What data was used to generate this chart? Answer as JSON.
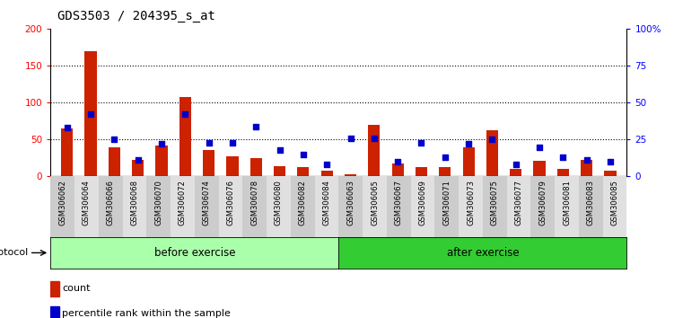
{
  "title": "GDS3503 / 204395_s_at",
  "categories": [
    "GSM306062",
    "GSM306064",
    "GSM306066",
    "GSM306068",
    "GSM306070",
    "GSM306072",
    "GSM306074",
    "GSM306076",
    "GSM306078",
    "GSM306080",
    "GSM306082",
    "GSM306084",
    "GSM306063",
    "GSM306065",
    "GSM306067",
    "GSM306069",
    "GSM306071",
    "GSM306073",
    "GSM306075",
    "GSM306077",
    "GSM306079",
    "GSM306081",
    "GSM306083",
    "GSM306085"
  ],
  "count_values": [
    65,
    170,
    40,
    22,
    42,
    108,
    36,
    27,
    25,
    14,
    13,
    8,
    3,
    70,
    17,
    13,
    13,
    40,
    63,
    10,
    21,
    10,
    22,
    8
  ],
  "percentile_values": [
    33,
    42,
    25,
    11,
    22,
    42,
    23,
    23,
    34,
    18,
    15,
    8,
    26,
    26,
    10,
    23,
    13,
    22,
    25,
    8,
    20,
    13,
    11,
    10
  ],
  "before_exercise_count": 12,
  "after_exercise_count": 12,
  "bar_color": "#cc2200",
  "dot_color": "#0000cc",
  "before_color": "#aaffaa",
  "after_color": "#33cc33",
  "protocol_label": "protocol",
  "before_label": "before exercise",
  "after_label": "after exercise",
  "legend_count": "count",
  "legend_pct": "percentile rank within the sample",
  "ylim_left": [
    0,
    200
  ],
  "ylim_right": [
    0,
    100
  ],
  "yticks_left": [
    0,
    50,
    100,
    150,
    200
  ],
  "yticks_right": [
    0,
    25,
    50,
    75,
    100
  ],
  "ytick_labels_right": [
    "0",
    "25",
    "50",
    "75",
    "100%"
  ],
  "grid_yticks": [
    50,
    100,
    150
  ],
  "title_fontsize": 10
}
